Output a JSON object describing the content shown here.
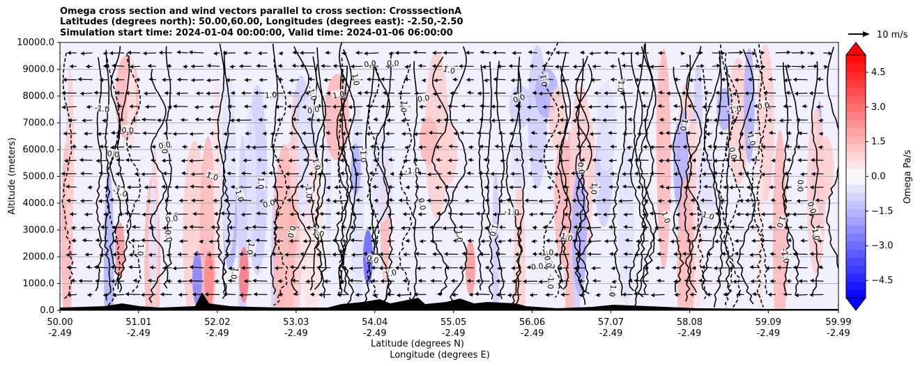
{
  "title": {
    "line1": "Omega cross section and wind vectors parallel to cross section: CrosssectionA",
    "line2": "Latitudes (degrees north): 50.00,60.00, Longitudes (degrees east): -2.50,-2.50",
    "line3": "Simulation start time: 2024-01-04 00:00:00, Valid time: 2024-01-06 06:00:00"
  },
  "chart_data": {
    "type": "heatmap",
    "title": "Omega cross section and wind vectors parallel to cross section: CrosssectionA",
    "xlabel": "Latitude (degrees N)",
    "xlabel2": "Longitude (degrees E)",
    "ylabel": "Altitude (meters)",
    "ylim": [
      0,
      10000
    ],
    "xlim": [
      50.0,
      59.99
    ],
    "y_ticks": [
      "0.0",
      "1000.0",
      "2000.0",
      "3000.0",
      "4000.0",
      "5000.0",
      "6000.0",
      "7000.0",
      "8000.0",
      "9000.0",
      "10000.0"
    ],
    "y_tick_values": [
      0,
      1000,
      2000,
      3000,
      4000,
      5000,
      6000,
      7000,
      8000,
      9000,
      10000
    ],
    "x_tick_values": [
      50.0,
      51.01,
      52.02,
      53.03,
      54.04,
      55.05,
      56.06,
      57.07,
      58.08,
      59.09,
      59.99
    ],
    "x_ticks_lat": [
      "50.00",
      "51.01",
      "52.02",
      "53.03",
      "54.04",
      "55.05",
      "56.06",
      "57.07",
      "58.08",
      "59.09",
      "59.99"
    ],
    "x_ticks_lon": [
      "-2.49",
      "-2.49",
      "-2.49",
      "-2.49",
      "-2.49",
      "-2.49",
      "-2.49",
      "-2.49",
      "-2.49",
      "-2.49",
      "-2.49"
    ],
    "grid": "horizontal",
    "colorbar": {
      "label": "Omega Pa/s",
      "ticks": [
        "4.5",
        "3.0",
        "1.5",
        "0.0",
        "−1.5",
        "−3.0",
        "−4.5"
      ],
      "tick_values": [
        4.5,
        3.0,
        1.5,
        0.0,
        -1.5,
        -3.0,
        -4.5
      ],
      "range": [
        -5.25,
        5.25
      ],
      "cmap": "bwr",
      "extend": "both"
    },
    "quiver_key": {
      "label": "10 m/s",
      "value": 10
    },
    "contour_labels": [
      "0.0",
      "1.0",
      "-1.0"
    ]
  },
  "colors": {
    "positive_max": "#ff0000",
    "negative_max": "#0000ff",
    "neutral": "#ffffff",
    "terrain": "#000000"
  }
}
